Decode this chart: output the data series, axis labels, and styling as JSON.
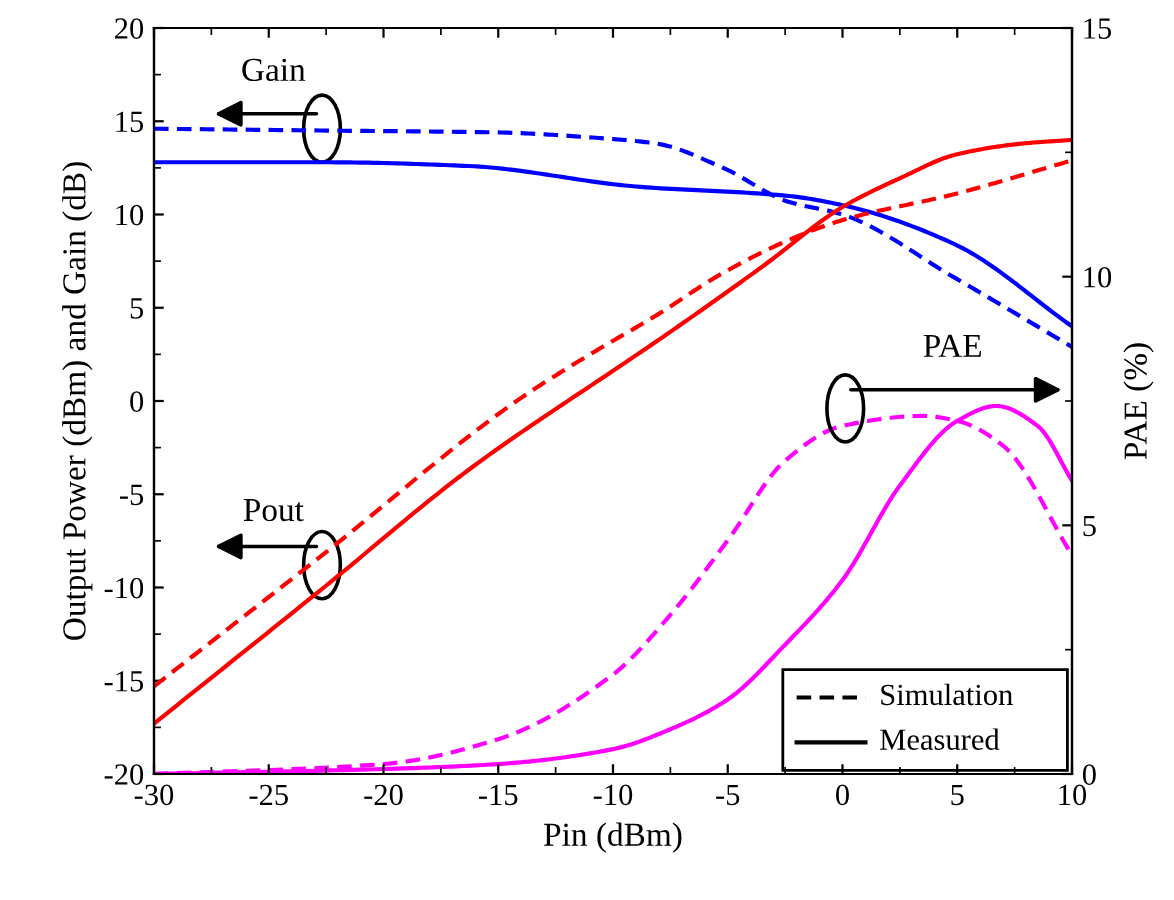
{
  "chart_data": {
    "type": "line",
    "xlabel": "Pin (dBm)",
    "ylabel": "Output Power (dBm) and Gain (dB)",
    "y2label": "PAE (%)",
    "xlim": [
      -30,
      10
    ],
    "xticks": [
      -30,
      -25,
      -20,
      -15,
      -10,
      -5,
      0,
      5,
      10
    ],
    "ylim": [
      -20,
      20
    ],
    "yticks": [
      -20,
      -15,
      -10,
      -5,
      0,
      5,
      10,
      15,
      20
    ],
    "y2lim": [
      0,
      15
    ],
    "y2ticks": [
      0,
      5,
      10,
      15
    ],
    "grid": false,
    "marker": "none",
    "annotations": [
      "Gain",
      "Pout",
      "PAE",
      "Simulation",
      "Measured"
    ],
    "series": [
      {
        "color": "#0000ff",
        "line_style": "dashed",
        "x": [
          -30,
          -22.5,
          -15,
          -10.6,
          -8.1,
          -5.2,
          -2.4,
          0,
          4.9,
          10
        ],
        "values": [
          14.6,
          14.5,
          14.4,
          14.1,
          13.8,
          12.5,
          10.7,
          10.0,
          6.6,
          2.9
        ]
      },
      {
        "color": "#0000ff",
        "line_style": "solid",
        "x": [
          -30,
          -22.5,
          -16.3,
          -9.0,
          -2.4,
          0,
          4.9,
          10
        ],
        "values": [
          12.8,
          12.8,
          12.6,
          11.5,
          11.0,
          10.5,
          8.4,
          4.0
        ]
      },
      {
        "color": "#ff0000",
        "line_style": "dashed",
        "x": [
          -30,
          -22.6,
          -14.2,
          -11,
          -8.1,
          -5.3,
          -2.4,
          0,
          4.9,
          10
        ],
        "values": [
          -15.3,
          -8.2,
          0.0,
          2.5,
          4.6,
          6.8,
          8.6,
          9.7,
          11.1,
          12.9
        ]
      },
      {
        "color": "#ff0000",
        "line_style": "solid",
        "x": [
          -30,
          -22.6,
          -16.3,
          -9.3,
          -8.1,
          -3.5,
          0,
          2.6,
          4.9,
          7.8,
          10
        ],
        "values": [
          -17.3,
          -10.0,
          -3.7,
          2.2,
          3.2,
          7.2,
          10.4,
          12.0,
          13.2,
          13.8,
          14.0
        ]
      },
      {
        "color": "#ff00ff",
        "line_style": "dashed",
        "axis": "y2",
        "x": [
          -30,
          -20,
          -15,
          -10,
          -7.5,
          -5,
          -2.5,
          0,
          3.5,
          5,
          7,
          10
        ],
        "values": [
          0.0,
          0.2,
          0.7,
          2.0,
          3.2,
          4.7,
          6.3,
          7.0,
          7.2,
          7.1,
          6.6,
          4.4
        ]
      },
      {
        "color": "#ff00ff",
        "line_style": "solid",
        "axis": "y2",
        "x": [
          -30,
          -20,
          -15,
          -10,
          -7.5,
          -5,
          -2.5,
          0,
          2.5,
          5,
          6.7,
          8.5,
          10
        ],
        "values": [
          0.0,
          0.1,
          0.2,
          0.5,
          0.9,
          1.5,
          2.6,
          3.9,
          5.8,
          7.1,
          7.4,
          7.0,
          5.9
        ]
      }
    ]
  }
}
